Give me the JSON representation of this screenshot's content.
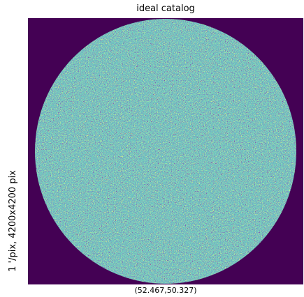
{
  "chart_data": {
    "type": "image",
    "title": "ideal catalog",
    "xlabel": "(52.467,50.327)",
    "ylabel": "1 '/pix,  4200x4200 pix"
  }
}
